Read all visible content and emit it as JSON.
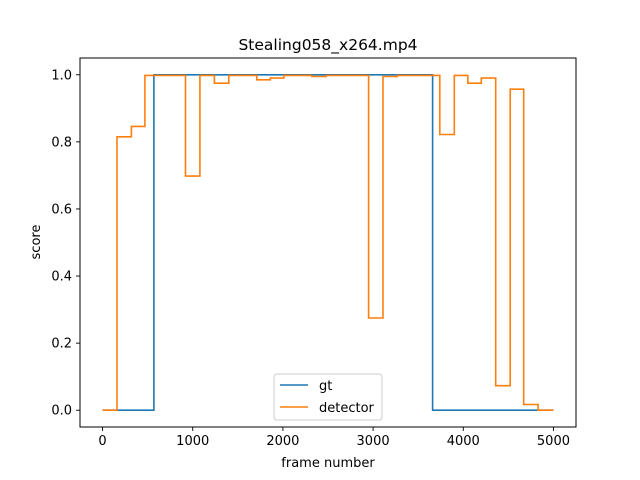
{
  "chart_data": {
    "type": "line",
    "title": "Stealing058_x264.mp4",
    "xlabel": "frame number",
    "ylabel": "score",
    "xlim": [
      -250,
      5250
    ],
    "ylim": [
      -0.05,
      1.05
    ],
    "xticks": [
      0,
      1000,
      2000,
      3000,
      4000,
      5000
    ],
    "yticks": [
      0.0,
      0.2,
      0.4,
      0.6,
      0.8,
      1.0
    ],
    "xtick_labels": [
      "0",
      "1000",
      "2000",
      "3000",
      "4000",
      "5000"
    ],
    "ytick_labels": [
      "0.0",
      "0.2",
      "0.4",
      "0.6",
      "0.8",
      "1.0"
    ],
    "grid": false,
    "legend_position": "lower center",
    "series": [
      {
        "name": "gt",
        "color": "#1f77b4",
        "step": true,
        "x": [
          0,
          570,
          570,
          3660,
          3660,
          5000
        ],
        "y": [
          0.0,
          0.0,
          1.0,
          1.0,
          0.0,
          0.0
        ]
      },
      {
        "name": "detector",
        "color": "#ff7f0e",
        "step": true,
        "x": [
          0,
          160,
          160,
          320,
          320,
          470,
          470,
          920,
          920,
          1080,
          1080,
          1240,
          1240,
          1400,
          1400,
          1710,
          1710,
          1860,
          1860,
          2010,
          2010,
          2320,
          2320,
          2480,
          2480,
          2950,
          2950,
          3110,
          3110,
          3270,
          3270,
          3740,
          3740,
          3900,
          3900,
          4050,
          4050,
          4200,
          4200,
          4360,
          4360,
          4520,
          4520,
          4670,
          4670,
          4830,
          4830,
          5000
        ],
        "y": [
          0.0,
          0.0,
          0.815,
          0.815,
          0.846,
          0.846,
          0.998,
          0.998,
          0.698,
          0.698,
          0.998,
          0.998,
          0.975,
          0.975,
          0.998,
          0.998,
          0.985,
          0.985,
          0.99,
          0.99,
          0.998,
          0.998,
          0.995,
          0.995,
          0.998,
          0.998,
          0.275,
          0.275,
          0.995,
          0.995,
          0.998,
          0.998,
          0.822,
          0.822,
          0.998,
          0.998,
          0.975,
          0.975,
          0.99,
          0.99,
          0.073,
          0.073,
          0.957,
          0.957,
          0.017,
          0.017,
          0.0,
          0.0
        ]
      }
    ]
  }
}
